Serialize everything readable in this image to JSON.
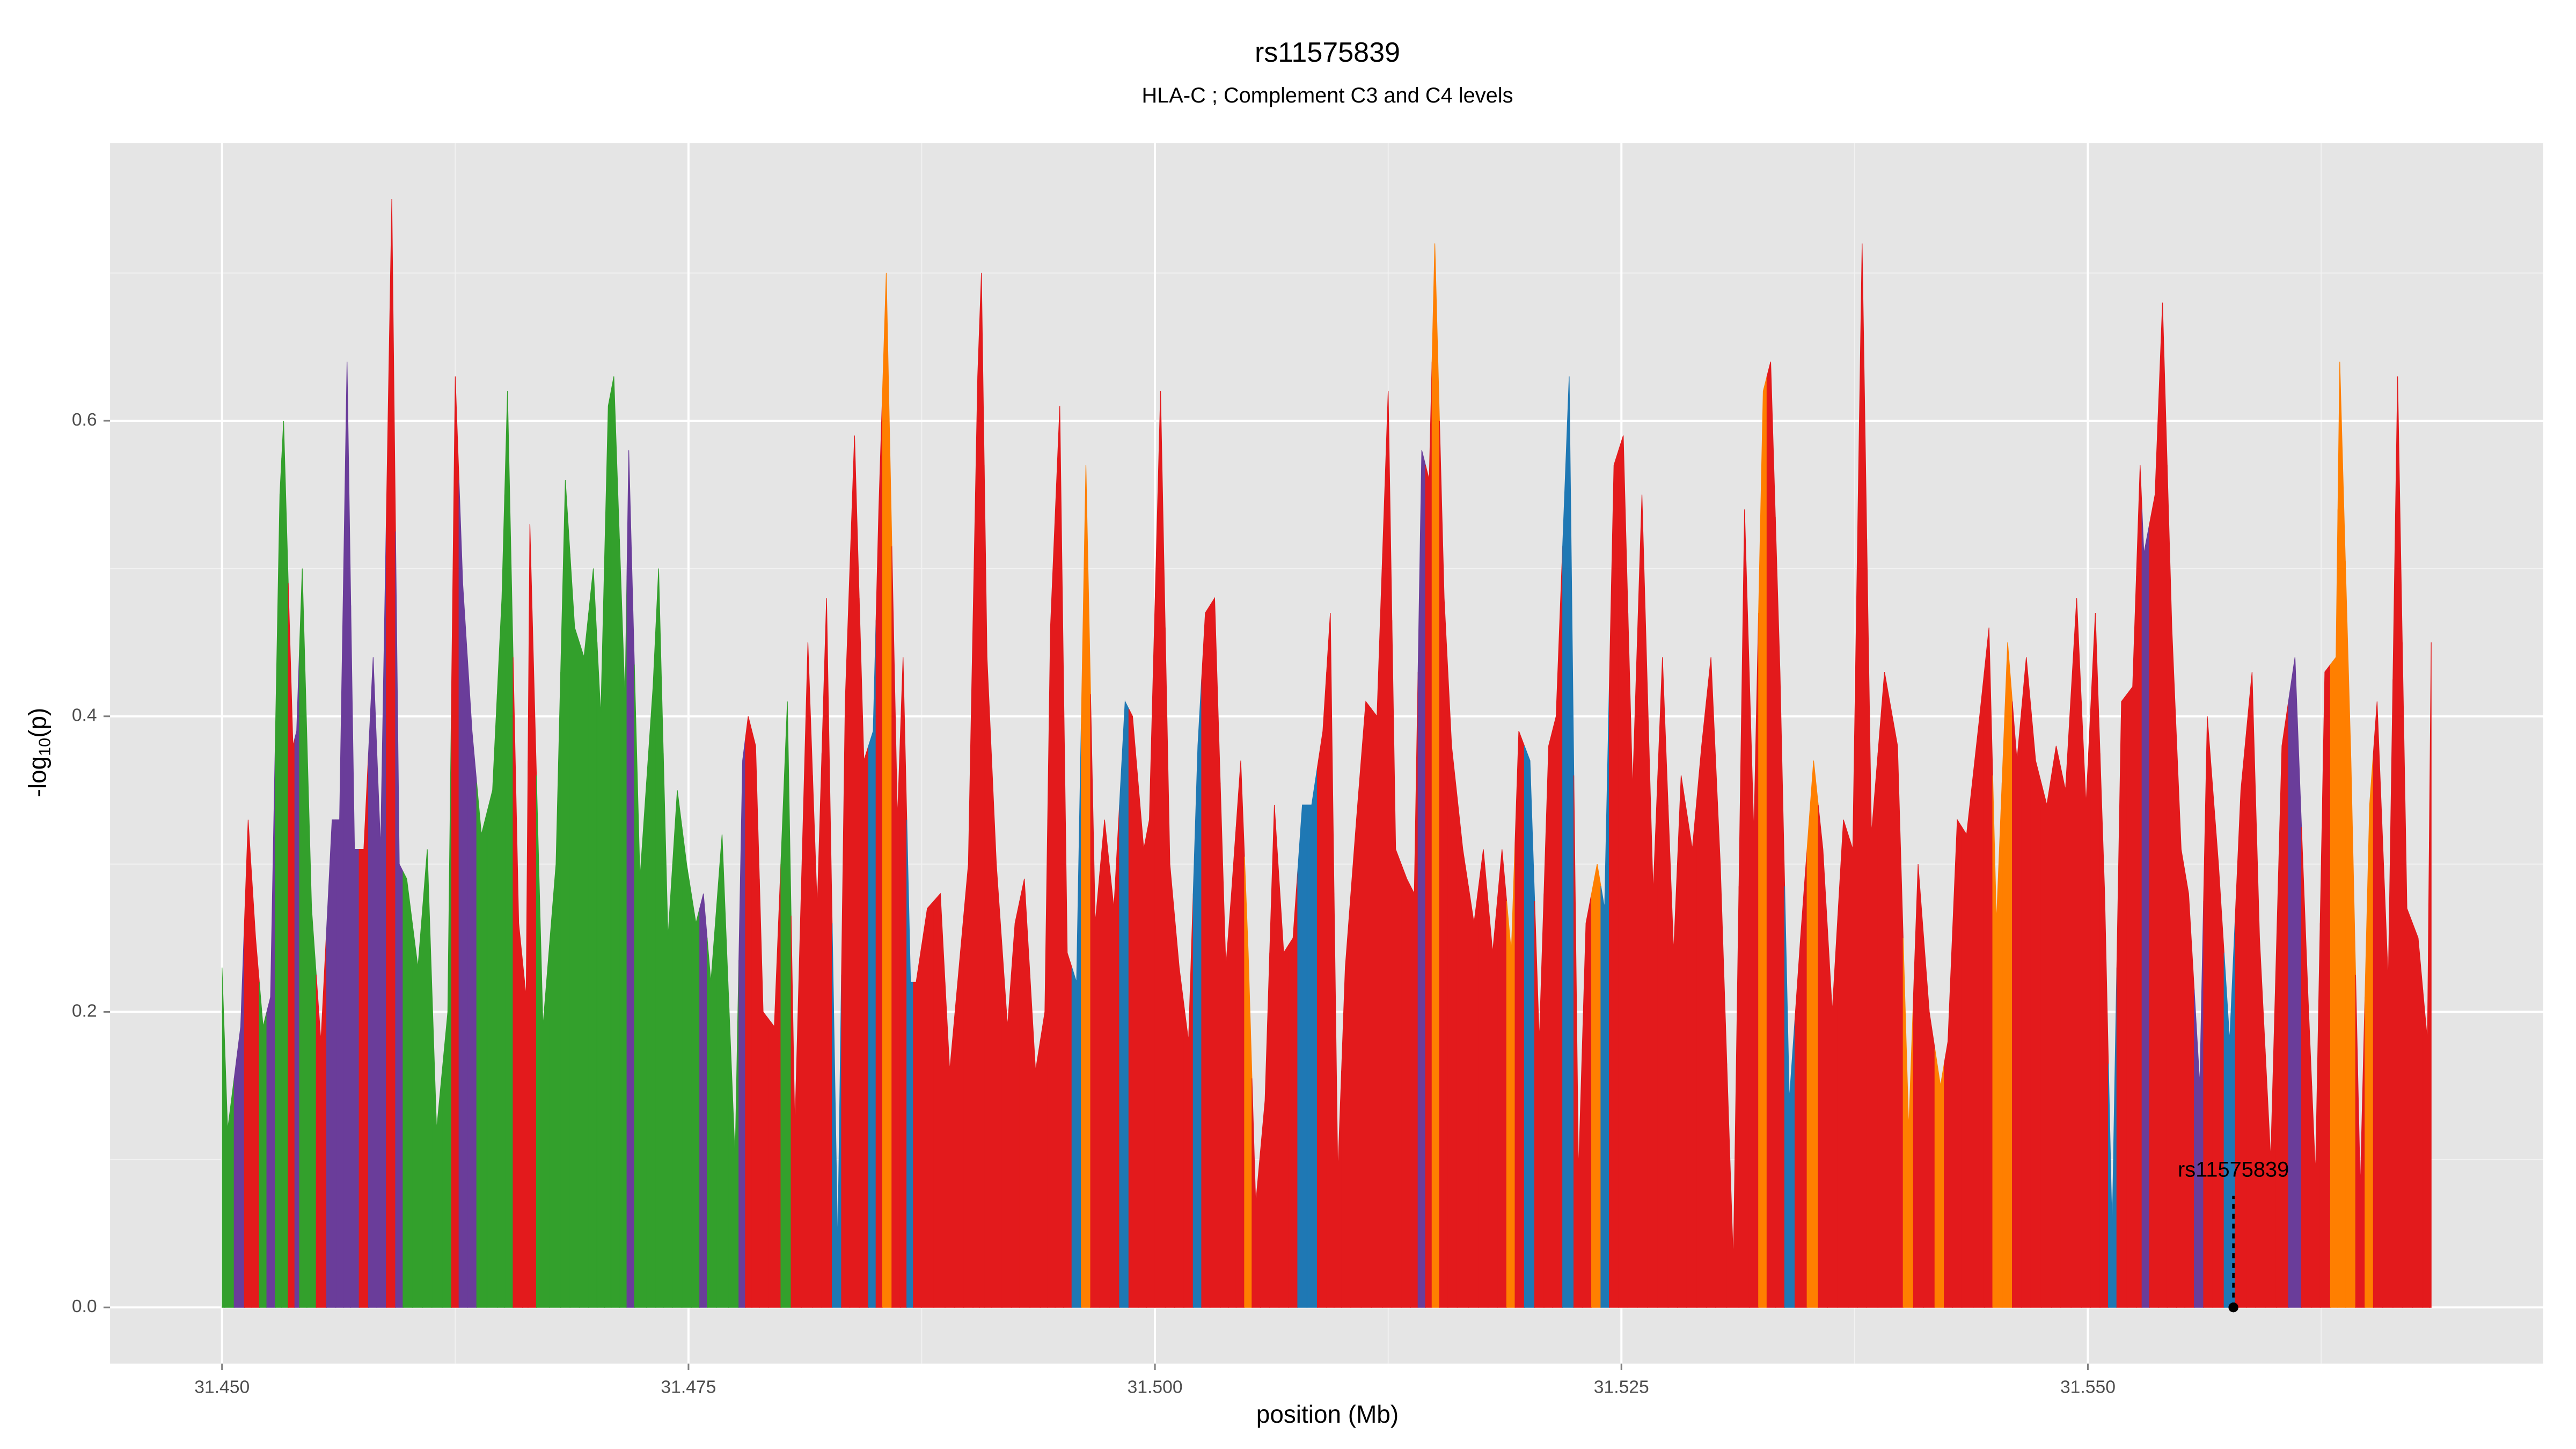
{
  "chart_data": {
    "type": "area",
    "title": "rs11575839",
    "subtitle": "HLA-C ; Complement C3 and C4 levels",
    "xlabel": "position (Mb)",
    "ylabel": [
      "-log",
      "10",
      "(p)"
    ],
    "x": [
      31.45,
      31.4503,
      31.451,
      31.4514,
      31.4518,
      31.4522,
      31.4526,
      31.4531,
      31.4533,
      31.4538,
      31.454,
      31.4543,
      31.4548,
      31.4553,
      31.4559,
      31.4563,
      31.4567,
      31.4571,
      31.4576,
      31.4581,
      31.4585,
      31.4591,
      31.4595,
      31.4599,
      31.4605,
      31.461,
      31.4615,
      31.4621,
      31.4625,
      31.4629,
      31.4634,
      31.4639,
      31.4645,
      31.465,
      31.4653,
      31.4659,
      31.4663,
      31.4665,
      31.4672,
      31.4679,
      31.4684,
      31.4689,
      31.4694,
      31.4699,
      31.4703,
      31.4707,
      31.471,
      31.4716,
      31.4718,
      31.4724,
      31.4731,
      31.4734,
      31.4739,
      31.4744,
      31.4749,
      31.4754,
      31.4758,
      31.4762,
      31.4768,
      31.4775,
      31.4779,
      31.4782,
      31.4786,
      31.479,
      31.4796,
      31.4803,
      31.4807,
      31.4814,
      31.4819,
      31.4824,
      31.483,
      31.4834,
      31.4839,
      31.4844,
      31.4849,
      31.4852,
      31.4856,
      31.4862,
      31.4865,
      31.4869,
      31.4872,
      31.4878,
      31.4885,
      31.489,
      31.4895,
      31.49,
      31.4905,
      31.4907,
      31.491,
      31.4915,
      31.4921,
      31.4925,
      31.493,
      31.4936,
      31.4941,
      31.4944,
      31.4949,
      31.4953,
      31.4958,
      31.4963,
      31.4968,
      31.4973,
      31.4978,
      31.4984,
      31.4988,
      31.4994,
      31.4997,
      31.5003,
      31.5008,
      31.5013,
      31.5018,
      31.5023,
      31.5027,
      31.5032,
      31.5038,
      31.5041,
      31.5046,
      31.505,
      31.5054,
      31.5059,
      31.5064,
      31.5069,
      31.5074,
      31.5079,
      31.5084,
      31.509,
      31.5094,
      31.5098,
      31.5102,
      31.5108,
      31.5113,
      31.5119,
      31.5125,
      31.5129,
      31.5135,
      31.5139,
      31.5143,
      31.5147,
      31.515,
      31.5155,
      31.5159,
      31.5165,
      31.5171,
      31.5176,
      31.5181,
      31.5186,
      31.5191,
      31.5195,
      31.5201,
      31.5206,
      31.5211,
      31.5215,
      31.5222,
      31.5227,
      31.5231,
      31.5237,
      31.5241,
      31.5246,
      31.5251,
      31.5256,
      31.5261,
      31.5267,
      31.5272,
      31.5278,
      31.5282,
      31.5288,
      31.5293,
      31.5298,
      31.5303,
      31.531,
      31.5316,
      31.5321,
      31.5326,
      31.533,
      31.5335,
      31.534,
      31.5346,
      31.5353,
      31.5358,
      31.5363,
      31.5369,
      31.5374,
      31.5379,
      31.5384,
      31.5391,
      31.5398,
      31.5404,
      31.5409,
      31.5415,
      31.5421,
      31.5425,
      31.543,
      31.5435,
      31.5442,
      31.5447,
      31.5451,
      31.5457,
      31.5462,
      31.5467,
      31.5472,
      31.5478,
      31.5483,
      31.5488,
      31.5494,
      31.5499,
      31.5504,
      31.5509,
      31.5513,
      31.5518,
      31.5524,
      31.5528,
      31.553,
      31.5536,
      31.554,
      31.5545,
      31.555,
      31.5554,
      31.556,
      31.5564,
      31.557,
      31.5576,
      31.5582,
      31.5588,
      31.5592,
      31.5598,
      31.5604,
      31.5611,
      31.5618,
      31.5622,
      31.5627,
      31.5633,
      31.5635,
      31.5641,
      31.5646,
      31.5651,
      31.5655,
      31.5661,
      31.5666,
      31.5671,
      31.5677,
      31.5682,
      31.5684
    ],
    "values": [
      0.23,
      0.12,
      0.19,
      0.33,
      0.25,
      0.19,
      0.21,
      0.55,
      0.6,
      0.38,
      0.39,
      0.5,
      0.27,
      0.18,
      0.33,
      0.33,
      0.64,
      0.31,
      0.31,
      0.44,
      0.31,
      0.75,
      0.3,
      0.29,
      0.23,
      0.31,
      0.12,
      0.2,
      0.63,
      0.49,
      0.39,
      0.32,
      0.35,
      0.48,
      0.62,
      0.26,
      0.21,
      0.53,
      0.19,
      0.3,
      0.56,
      0.46,
      0.44,
      0.5,
      0.4,
      0.61,
      0.63,
      0.41,
      0.58,
      0.29,
      0.42,
      0.5,
      0.25,
      0.35,
      0.3,
      0.26,
      0.28,
      0.22,
      0.32,
      0.1,
      0.37,
      0.4,
      0.38,
      0.2,
      0.19,
      0.41,
      0.12,
      0.45,
      0.27,
      0.48,
      0.04,
      0.41,
      0.59,
      0.37,
      0.39,
      0.54,
      0.7,
      0.33,
      0.44,
      0.22,
      0.22,
      0.27,
      0.28,
      0.16,
      0.23,
      0.3,
      0.63,
      0.7,
      0.44,
      0.3,
      0.19,
      0.26,
      0.29,
      0.16,
      0.2,
      0.46,
      0.61,
      0.24,
      0.22,
      0.57,
      0.26,
      0.33,
      0.27,
      0.41,
      0.4,
      0.31,
      0.33,
      0.62,
      0.3,
      0.23,
      0.18,
      0.38,
      0.47,
      0.48,
      0.23,
      0.28,
      0.37,
      0.24,
      0.07,
      0.14,
      0.34,
      0.24,
      0.25,
      0.34,
      0.34,
      0.39,
      0.47,
      0.09,
      0.23,
      0.33,
      0.41,
      0.4,
      0.62,
      0.31,
      0.29,
      0.28,
      0.58,
      0.56,
      0.72,
      0.48,
      0.38,
      0.31,
      0.26,
      0.31,
      0.24,
      0.31,
      0.24,
      0.39,
      0.37,
      0.18,
      0.38,
      0.4,
      0.63,
      0.09,
      0.26,
      0.3,
      0.27,
      0.57,
      0.59,
      0.35,
      0.55,
      0.28,
      0.44,
      0.24,
      0.36,
      0.31,
      0.38,
      0.44,
      0.3,
      0.03,
      0.54,
      0.32,
      0.62,
      0.64,
      0.43,
      0.14,
      0.25,
      0.37,
      0.31,
      0.2,
      0.33,
      0.31,
      0.72,
      0.32,
      0.43,
      0.38,
      0.12,
      0.3,
      0.2,
      0.15,
      0.18,
      0.33,
      0.32,
      0.4,
      0.46,
      0.26,
      0.45,
      0.37,
      0.44,
      0.37,
      0.34,
      0.38,
      0.35,
      0.48,
      0.34,
      0.47,
      0.28,
      0.05,
      0.41,
      0.42,
      0.57,
      0.51,
      0.55,
      0.68,
      0.46,
      0.31,
      0.28,
      0.15,
      0.4,
      0.3,
      0.18,
      0.35,
      0.43,
      0.25,
      0.1,
      0.38,
      0.44,
      0.21,
      0.09,
      0.43,
      0.44,
      0.64,
      0.37,
      0.08,
      0.34,
      0.41,
      0.22,
      0.63,
      0.27,
      0.25,
      0.18,
      0.45
    ],
    "point_colors": [
      "#33a02c",
      "#33a02c",
      "#6a3d9a",
      "#e31a1c",
      "#e31a1c",
      "#33a02c",
      "#6a3d9a",
      "#33a02c",
      "#33a02c",
      "#e31a1c",
      "#6a3d9a",
      "#33a02c",
      "#33a02c",
      "#e31a1c",
      "#6a3d9a",
      "#6a3d9a",
      "#6a3d9a",
      "#6a3d9a",
      "#e31a1c",
      "#6a3d9a",
      "#6a3d9a",
      "#e31a1c",
      "#6a3d9a",
      "#33a02c",
      "#33a02c",
      "#33a02c",
      "#33a02c",
      "#33a02c",
      "#e31a1c",
      "#6a3d9a",
      "#6a3d9a",
      "#33a02c",
      "#33a02c",
      "#33a02c",
      "#33a02c",
      "#e31a1c",
      "#e31a1c",
      "#e31a1c",
      "#33a02c",
      "#33a02c",
      "#33a02c",
      "#33a02c",
      "#33a02c",
      "#33a02c",
      "#33a02c",
      "#33a02c",
      "#33a02c",
      "#33a02c",
      "#6a3d9a",
      "#33a02c",
      "#33a02c",
      "#33a02c",
      "#33a02c",
      "#33a02c",
      "#33a02c",
      "#33a02c",
      "#6a3d9a",
      "#33a02c",
      "#33a02c",
      "#33a02c",
      "#6a3d9a",
      "#e31a1c",
      "#e31a1c",
      "#e31a1c",
      "#e31a1c",
      "#33a02c",
      "#e31a1c",
      "#e31a1c",
      "#e31a1c",
      "#e31a1c",
      "#1f78b4",
      "#e31a1c",
      "#e31a1c",
      "#e31a1c",
      "#1f78b4",
      "#e31a1c",
      "#ff7f00",
      "#e31a1c",
      "#e31a1c",
      "#1f78b4",
      "#e31a1c",
      "#e31a1c",
      "#e31a1c",
      "#e31a1c",
      "#e31a1c",
      "#e31a1c",
      "#e31a1c",
      "#e31a1c",
      "#e31a1c",
      "#e31a1c",
      "#e31a1c",
      "#e31a1c",
      "#e31a1c",
      "#e31a1c",
      "#e31a1c",
      "#e31a1c",
      "#e31a1c",
      "#e31a1c",
      "#1f78b4",
      "#ff7f00",
      "#e31a1c",
      "#e31a1c",
      "#e31a1c",
      "#1f78b4",
      "#e31a1c",
      "#e31a1c",
      "#e31a1c",
      "#e31a1c",
      "#e31a1c",
      "#e31a1c",
      "#e31a1c",
      "#1f78b4",
      "#e31a1c",
      "#e31a1c",
      "#e31a1c",
      "#e31a1c",
      "#e31a1c",
      "#ff7f00",
      "#e31a1c",
      "#e31a1c",
      "#e31a1c",
      "#e31a1c",
      "#e31a1c",
      "#1f78b4",
      "#1f78b4",
      "#e31a1c",
      "#e31a1c",
      "#e31a1c",
      "#e31a1c",
      "#e31a1c",
      "#e31a1c",
      "#e31a1c",
      "#e31a1c",
      "#e31a1c",
      "#e31a1c",
      "#e31a1c",
      "#6a3d9a",
      "#e31a1c",
      "#ff7f00",
      "#e31a1c",
      "#e31a1c",
      "#e31a1c",
      "#e31a1c",
      "#e31a1c",
      "#e31a1c",
      "#e31a1c",
      "#ff7f00",
      "#e31a1c",
      "#1f78b4",
      "#e31a1c",
      "#e31a1c",
      "#e31a1c",
      "#1f78b4",
      "#e31a1c",
      "#e31a1c",
      "#ff7f00",
      "#1f78b4",
      "#e31a1c",
      "#e31a1c",
      "#e31a1c",
      "#e31a1c",
      "#e31a1c",
      "#e31a1c",
      "#e31a1c",
      "#e31a1c",
      "#e31a1c",
      "#e31a1c",
      "#e31a1c",
      "#e31a1c",
      "#e31a1c",
      "#e31a1c",
      "#e31a1c",
      "#ff7f00",
      "#e31a1c",
      "#e31a1c",
      "#1f78b4",
      "#e31a1c",
      "#ff7f00",
      "#e31a1c",
      "#e31a1c",
      "#e31a1c",
      "#e31a1c",
      "#e31a1c",
      "#e31a1c",
      "#e31a1c",
      "#e31a1c",
      "#ff7f00",
      "#e31a1c",
      "#e31a1c",
      "#ff7f00",
      "#e31a1c",
      "#e31a1c",
      "#e31a1c",
      "#e31a1c",
      "#e31a1c",
      "#ff7f00",
      "#ff7f00",
      "#e31a1c",
      "#e31a1c",
      "#e31a1c",
      "#e31a1c",
      "#e31a1c",
      "#e31a1c",
      "#e31a1c",
      "#e31a1c",
      "#e31a1c",
      "#e31a1c",
      "#1f78b4",
      "#e31a1c",
      "#e31a1c",
      "#e31a1c",
      "#6a3d9a",
      "#e31a1c",
      "#e31a1c",
      "#e31a1c",
      "#e31a1c",
      "#e31a1c",
      "#6a3d9a",
      "#e31a1c",
      "#e31a1c",
      "#1f78b4",
      "#e31a1c",
      "#e31a1c",
      "#e31a1c",
      "#e31a1c",
      "#e31a1c",
      "#6a3d9a",
      "#e31a1c",
      "#e31a1c",
      "#e31a1c",
      "#ff7f00",
      "#ff7f00",
      "#ff7f00",
      "#e31a1c",
      "#ff7f00",
      "#e31a1c",
      "#e31a1c",
      "#e31a1c",
      "#e31a1c",
      "#e31a1c",
      "#e31a1c",
      "#e31a1c"
    ],
    "xlim": [
      31.444,
      31.5744
    ],
    "ylim": [
      -0.038,
      0.788
    ],
    "xticks": [
      {
        "value": 31.45,
        "label": "31.450"
      },
      {
        "value": 31.475,
        "label": "31.475"
      },
      {
        "value": 31.5,
        "label": "31.500"
      },
      {
        "value": 31.525,
        "label": "31.525"
      },
      {
        "value": 31.55,
        "label": "31.550"
      }
    ],
    "yticks": [
      {
        "value": 0,
        "label": "0.0"
      },
      0.2,
      0.4,
      0.6
    ],
    "grid": true,
    "annotation": {
      "text": "rs11575839",
      "x": 31.5578,
      "y": 0
    }
  }
}
